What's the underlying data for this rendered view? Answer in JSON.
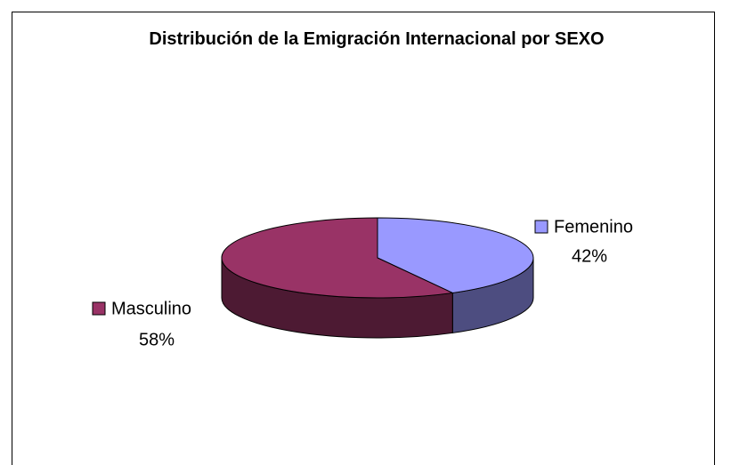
{
  "chart_data": {
    "type": "pie3d",
    "title": "Distribución de la Emigración Internacional por SEXO",
    "categories": [
      "Femenino",
      "Masculino"
    ],
    "values": [
      42,
      58
    ],
    "value_labels": [
      "42%",
      "58%"
    ],
    "colors": [
      "#9999ff",
      "#993366"
    ]
  }
}
